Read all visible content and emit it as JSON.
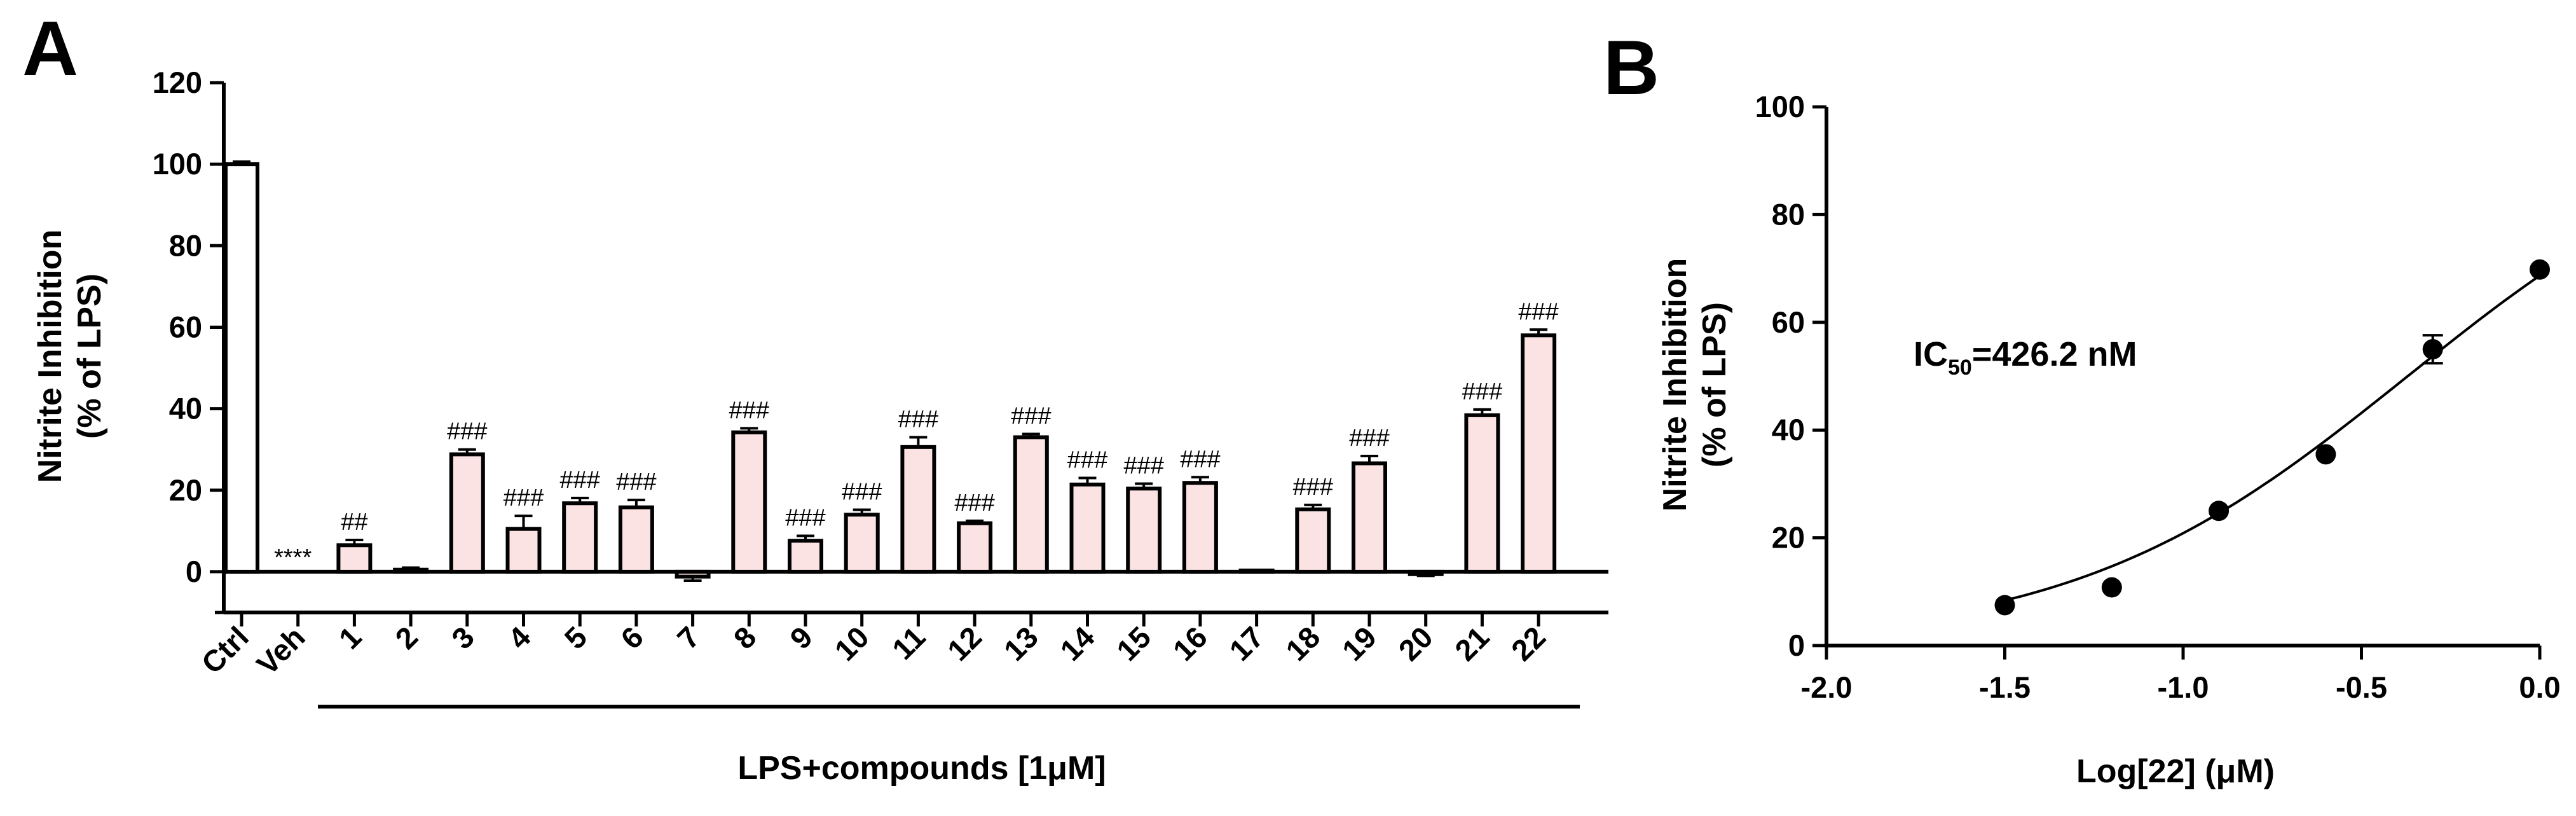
{
  "chart_data": [
    {
      "panel": "A",
      "type": "bar",
      "title": "",
      "ylabel_line1": "Nitrite Inhibition",
      "ylabel_line2": "(% of LPS)",
      "xlabel": "LPS+compounds [1μM]",
      "ylim": [
        -10,
        120
      ],
      "yticks": [
        0,
        20,
        40,
        60,
        80,
        100,
        120
      ],
      "grid": false,
      "bar_fill_control": "#ffffff",
      "bar_fill_treated": "#fbe3e3",
      "categories": [
        "Ctrl",
        "Veh",
        "1",
        "2",
        "3",
        "4",
        "5",
        "6",
        "7",
        "8",
        "9",
        "10",
        "11",
        "12",
        "13",
        "14",
        "15",
        "16",
        "17",
        "18",
        "19",
        "20",
        "21",
        "22"
      ],
      "values": [
        100,
        0,
        6.5,
        0.5,
        28.8,
        10.5,
        16.8,
        15.8,
        -1.2,
        34.2,
        7.6,
        14,
        30.6,
        11.9,
        33,
        21.4,
        20.4,
        21.8,
        0.3,
        15.3,
        26.6,
        -0.6,
        38.4,
        58
      ],
      "errors": [
        0.6,
        0,
        1.3,
        0.5,
        1.2,
        3.2,
        1.3,
        1.8,
        1.0,
        1.0,
        1.2,
        1.2,
        2.4,
        0.6,
        0.8,
        1.6,
        1.2,
        1.4,
        0.1,
        1.1,
        1.8,
        0.4,
        1.4,
        1.4
      ],
      "annotations": [
        "",
        "****",
        "##",
        "",
        "###",
        "###",
        "###",
        "###",
        "",
        "###",
        "###",
        "###",
        "###",
        "###",
        "###",
        "###",
        "###",
        "###",
        "",
        "###",
        "###",
        "",
        "###",
        "###"
      ]
    },
    {
      "panel": "B",
      "type": "scatter",
      "title": "",
      "ylabel_line1": "Nitrite Inhibition",
      "ylabel_line2": "(% of LPS)",
      "xlabel": "Log[22] (μM)",
      "xlim": [
        -2.0,
        0.0
      ],
      "ylim": [
        0,
        100
      ],
      "xticks": [
        "-2.0",
        "-1.5",
        "-1.0",
        "-0.5",
        "0.0"
      ],
      "yticks": [
        0,
        20,
        40,
        60,
        80,
        100
      ],
      "grid": false,
      "x": [
        -1.5,
        -1.2,
        -0.9,
        -0.6,
        -0.3,
        0.0
      ],
      "y": [
        7.5,
        10.8,
        25,
        35.5,
        55,
        69.8
      ],
      "errors": [
        0.5,
        0.6,
        0.6,
        0.7,
        2.6,
        0.6
      ],
      "fit": "sigmoidal dose-response curve",
      "annotation_ic50_prefix": "IC",
      "annotation_ic50_sub": "50",
      "annotation_ic50_value": "=426.2 nM"
    }
  ],
  "panel_labels": {
    "a": "A",
    "b": "B"
  }
}
